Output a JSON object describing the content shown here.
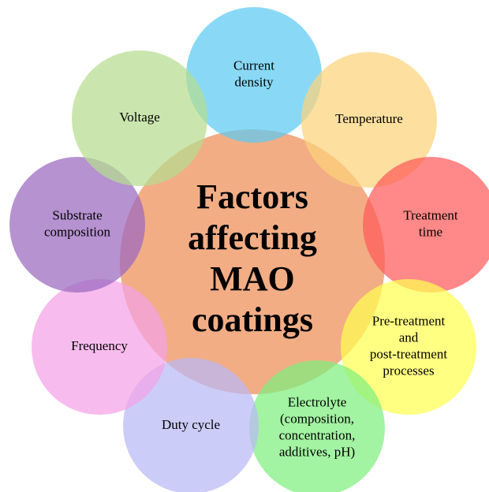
{
  "center": {
    "lines": [
      "Factors",
      "affecting",
      "MAO",
      "coatings"
    ]
  },
  "nodes": [
    {
      "lines": [
        "Current",
        "density"
      ]
    },
    {
      "lines": [
        "Temperature"
      ]
    },
    {
      "lines": [
        "Treatment",
        "time"
      ]
    },
    {
      "lines": [
        "Pre-treatment",
        "and",
        "post-treatment",
        "processes"
      ]
    },
    {
      "lines": [
        "Electrolyte",
        "(composition,",
        "concentration,",
        "additives, pH)"
      ]
    },
    {
      "lines": [
        "Duty cycle"
      ]
    },
    {
      "lines": [
        "Frequency"
      ]
    },
    {
      "lines": [
        "Substrate",
        "composition"
      ]
    },
    {
      "lines": [
        "Voltage"
      ]
    }
  ]
}
